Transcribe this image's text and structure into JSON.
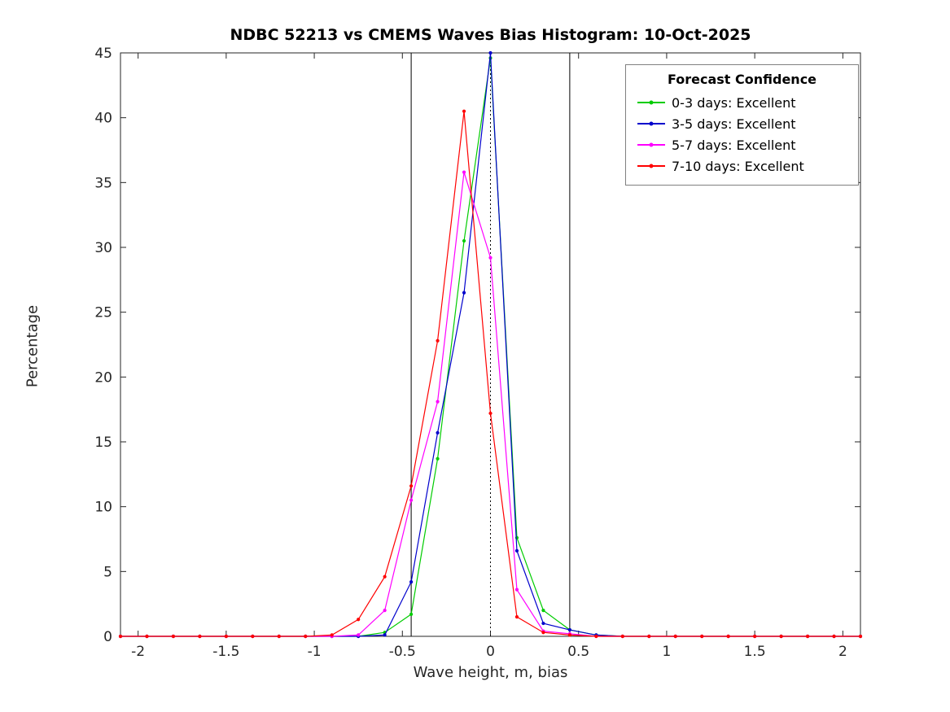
{
  "title": "NDBC 52213 vs CMEMS Waves Bias Histogram: 10-Oct-2025",
  "xlabel": "Wave height, m, bias",
  "ylabel": "Percentage",
  "legend": {
    "title": "Forecast Confidence",
    "entries": [
      {
        "label": "0-3 days: Excellent",
        "color": "#00cc00"
      },
      {
        "label": "3-5 days: Excellent",
        "color": "#0000cc"
      },
      {
        "label": "5-7 days: Excellent",
        "color": "#ff00ff"
      },
      {
        "label": "7-10 days: Excellent",
        "color": "#ff0000"
      }
    ]
  },
  "chart_data": {
    "type": "line",
    "title": "NDBC 52213 vs CMEMS Waves Bias Histogram: 10-Oct-2025",
    "xlabel": "Wave height, m, bias",
    "ylabel": "Percentage",
    "xlim": [
      -2.1,
      2.1
    ],
    "ylim": [
      0,
      45
    ],
    "xticks": [
      -2,
      -1.5,
      -1,
      -0.5,
      0,
      0.5,
      1,
      1.5,
      2
    ],
    "xtick_labels": [
      "-2",
      "-1.5",
      "-1",
      "-0.5",
      "0",
      "0.5",
      "1",
      "1.5",
      "2"
    ],
    "yticks": [
      0,
      5,
      10,
      15,
      20,
      25,
      30,
      35,
      40,
      45
    ],
    "grid": false,
    "legend_position": "top-right",
    "x": [
      -2.1,
      -1.95,
      -1.8,
      -1.65,
      -1.5,
      -1.35,
      -1.2,
      -1.05,
      -0.9,
      -0.75,
      -0.6,
      -0.45,
      -0.3,
      -0.15,
      0,
      0.15,
      0.3,
      0.45,
      0.6,
      0.75,
      0.9,
      1.05,
      1.2,
      1.35,
      1.5,
      1.65,
      1.8,
      1.95,
      2.1
    ],
    "series": [
      {
        "name": "0-3 days: Excellent",
        "color": "#00cc00",
        "values": [
          0,
          0,
          0,
          0,
          0,
          0,
          0,
          0,
          0,
          0,
          0.3,
          1.7,
          13.7,
          30.5,
          44.6,
          7.6,
          2.0,
          0.5,
          0.1,
          0,
          0,
          0,
          0,
          0,
          0,
          0,
          0,
          0,
          0
        ]
      },
      {
        "name": "3-5 days: Excellent",
        "color": "#0000cc",
        "values": [
          0,
          0,
          0,
          0,
          0,
          0,
          0,
          0,
          0,
          0,
          0.1,
          4.2,
          15.7,
          26.5,
          45.0,
          6.6,
          1.0,
          0.5,
          0.1,
          0,
          0,
          0,
          0,
          0,
          0,
          0,
          0,
          0,
          0
        ]
      },
      {
        "name": "5-7 days: Excellent",
        "color": "#ff00ff",
        "values": [
          0,
          0,
          0,
          0,
          0,
          0,
          0,
          0,
          0,
          0.1,
          2.0,
          10.5,
          18.1,
          35.8,
          29.2,
          3.6,
          0.4,
          0.2,
          0,
          0,
          0,
          0,
          0,
          0,
          0,
          0,
          0,
          0,
          0
        ]
      },
      {
        "name": "7-10 days: Excellent",
        "color": "#ff0000",
        "values": [
          0,
          0,
          0,
          0,
          0,
          0,
          0,
          0,
          0.1,
          1.3,
          4.6,
          11.6,
          22.8,
          40.5,
          17.2,
          1.5,
          0.3,
          0.1,
          0,
          0,
          0,
          0,
          0,
          0,
          0,
          0,
          0,
          0,
          0
        ]
      }
    ],
    "reference_lines": [
      {
        "x": -0.45,
        "style": "solid",
        "color": "#000000"
      },
      {
        "x": 0.45,
        "style": "solid",
        "color": "#000000"
      },
      {
        "x": 0,
        "style": "dotted",
        "color": "#000000"
      }
    ]
  }
}
